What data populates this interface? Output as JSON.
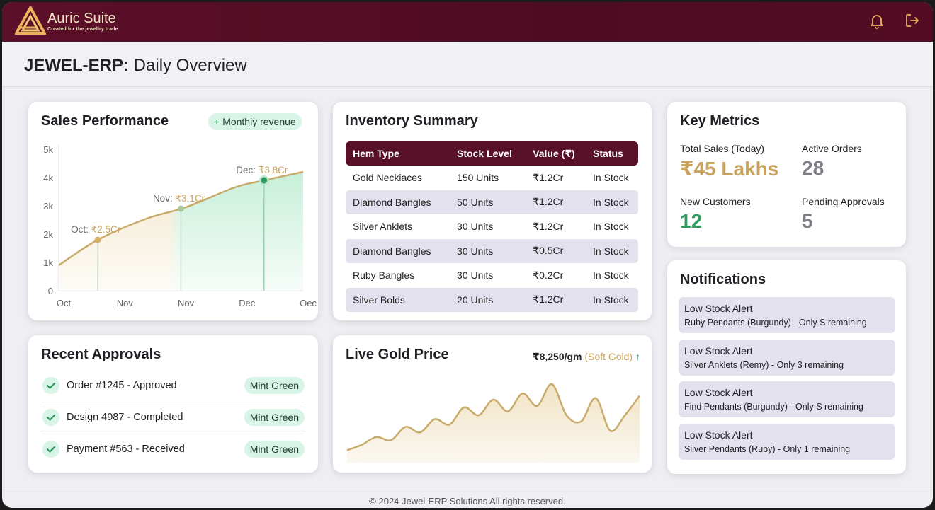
{
  "app": {
    "brand": "Auric Suite",
    "tagline": "Created for the jewellry trade",
    "icons": {
      "logo": "triangle-logo-icon",
      "notifications": "bell-icon",
      "logout": "logout-icon"
    }
  },
  "page": {
    "title_bold": "JEWEL-ERP:",
    "title_rest": " Daily Overview"
  },
  "sales": {
    "title": "Sales Performance",
    "button": "Monthiy revenue",
    "button_icon": "plus-icon"
  },
  "chart_data": {
    "type": "area",
    "title": "Sales Performance",
    "x_ticks": [
      "Oct",
      "Nov",
      "Nov",
      "Dec",
      "Oec"
    ],
    "y_ticks": [
      "0",
      "1k",
      "2k",
      "3k",
      "4k",
      "5k"
    ],
    "ylim": [
      0,
      5000
    ],
    "points": [
      {
        "x": 0.0,
        "y": 900
      },
      {
        "x": 0.16,
        "y": 1800
      },
      {
        "x": 0.36,
        "y": 2550
      },
      {
        "x": 0.52,
        "y": 2950
      },
      {
        "x": 0.72,
        "y": 3650
      },
      {
        "x": 0.84,
        "y": 3900
      },
      {
        "x": 1.0,
        "y": 4200
      }
    ],
    "annotations": [
      {
        "label": "Oct: ₹2.5Cr",
        "x": 0.16,
        "y": 1800
      },
      {
        "label": "Nov: ₹3.1Cr",
        "x": 0.5,
        "y": 2900
      },
      {
        "label": "Dec: ₹3.8Cr",
        "x": 0.84,
        "y": 3900
      }
    ],
    "grid": false,
    "colors": {
      "line": "#c8ab6a",
      "fill_start": "#f3e8cd",
      "fill_end": "#c7efd9",
      "highlight": "#2f9a5e"
    }
  },
  "inventory": {
    "title": "Inventory Summary",
    "headers": [
      "Hem Type",
      "Stock Level",
      "Value (₹)",
      "Status"
    ],
    "rows": [
      [
        "Gold Neckiaces",
        "150 Units",
        "₹1.2Cr",
        "In Stock"
      ],
      [
        "Diamond Bangles",
        "50 Units",
        "₹1.2Cr",
        "In Stock"
      ],
      [
        "Silver Anklets",
        "30 Units",
        "₹1.2Cr",
        "In Stock"
      ],
      [
        "Diamond Bangles",
        "30 Units",
        "₹0.5Cr",
        "In Stock"
      ],
      [
        "Ruby Bangles",
        "30 Units",
        "₹0.2Cr",
        "In Stock"
      ],
      [
        "Silver Bolds",
        "20 Units",
        "₹1.2Cr",
        "In Stock"
      ]
    ]
  },
  "metrics": {
    "title": "Key Metrics",
    "total_sales_label": "Total Sales (Today)",
    "total_sales_value": "₹45 Lakhs",
    "active_orders_label": "Active Orders",
    "active_orders_value": "28",
    "new_customers_label": "New Customers",
    "new_customers_value": "12",
    "pending_label": "Pending Approvals",
    "pending_value": "5"
  },
  "notifications": {
    "title": "Notifications",
    "items": [
      {
        "title": "Low Stock Alert",
        "text": "Ruby Pendants (Burgundy) - Only S remaining"
      },
      {
        "title": "Low Stock Alert",
        "text": "Silver Anklets (Remy) - Only 3 remaining"
      },
      {
        "title": "Low Stock Alert",
        "text": "Find Pendants (Burgundy) - Only S remaining"
      },
      {
        "title": "Low Stock Alert",
        "text": "Silver Pendants (Ruby) - Only 1 remaining"
      }
    ]
  },
  "approvals": {
    "title": "Recent Approvals",
    "items": [
      {
        "text": "Order #1245 - Approved",
        "tag": "Mint Green"
      },
      {
        "text": "Design 4987 - Completed",
        "tag": "Mint Green"
      },
      {
        "text": "Payment #563 - Received",
        "tag": "Mint Green"
      }
    ]
  },
  "gold": {
    "title": "Live Gold Price",
    "price": "₹8,250/gm",
    "qualifier": "(Soft Gold)",
    "trend_icon": "arrow-up-icon",
    "series": [
      0.05,
      0.12,
      0.22,
      0.18,
      0.35,
      0.28,
      0.45,
      0.38,
      0.6,
      0.5,
      0.7,
      0.55,
      0.78,
      0.62,
      0.9,
      0.5,
      0.42,
      0.72,
      0.3,
      0.5,
      0.75
    ]
  },
  "footer": {
    "text": "© 2024 Jewel-ERP Solutions  All rights reserved."
  },
  "colors": {
    "burgundy": "#581028",
    "gold": "#c9a35a",
    "mint": "#d8f4e6",
    "green": "#2f9a5e"
  }
}
